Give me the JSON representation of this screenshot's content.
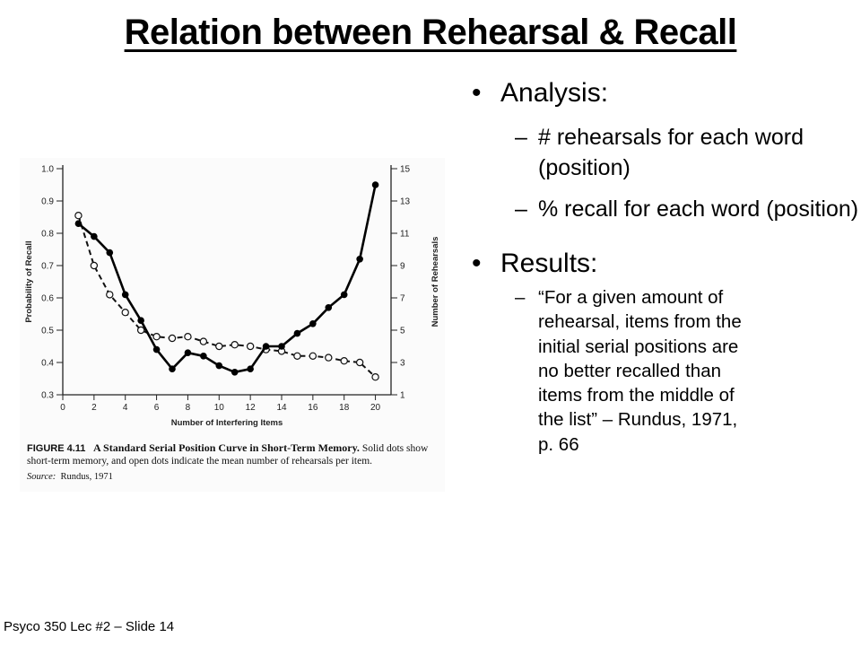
{
  "slide": {
    "title": "Relation between Rehearsal & Recall",
    "footer": "Psyco 350 Lec #2 – Slide 14"
  },
  "bullets": {
    "analysis": {
      "label": "Analysis:",
      "items": [
        "# rehearsals for each word (position)",
        "% recall for each word (position)"
      ]
    },
    "results": {
      "label": "Results:",
      "quote_lines": [
        "“For a given amount of",
        "rehearsal, items from the",
        "initial serial positions are",
        "no better recalled than",
        "items from the middle of",
        "the list” – Rundus, 1971,",
        "p. 66"
      ]
    }
  },
  "figure": {
    "label": "FIGURE 4.11",
    "title": "A Standard Serial Position Curve in Short-Term Memory.",
    "text": " Solid dots show short-term memory, and open dots indicate the mean number of rehearsals per item.",
    "source_label": "Source:",
    "source_text": "Rundus, 1971"
  },
  "chart_data": {
    "type": "line",
    "xlabel": "Number of Interfering Items",
    "ylabel": "Probability of Recall",
    "y2label": "Number of Rehearsals",
    "xlim": [
      0,
      21
    ],
    "ylim": [
      0.3,
      1.0
    ],
    "y2lim": [
      1,
      15
    ],
    "x_ticks": [
      "0",
      "2",
      "4",
      "6",
      "8",
      "10",
      "12",
      "14",
      "16",
      "18",
      "20"
    ],
    "y_ticks": [
      "1.0",
      "0.9",
      "0.8",
      "0.7",
      "0.6",
      "0.5",
      "0.4",
      "0.3"
    ],
    "y2_ticks": [
      "15",
      "13",
      "11",
      "9",
      "7",
      "5",
      "3",
      "1"
    ],
    "grid": false,
    "series": [
      {
        "style": "solid-filled-dots",
        "axis": "left",
        "x": [
          1,
          2,
          3,
          4,
          5,
          6,
          7,
          8,
          9,
          10,
          11,
          12,
          13,
          14,
          15,
          16,
          17,
          18,
          19,
          20
        ],
        "values": [
          0.83,
          0.79,
          0.74,
          0.61,
          0.53,
          0.44,
          0.38,
          0.43,
          0.42,
          0.39,
          0.37,
          0.38,
          0.45,
          0.45,
          0.49,
          0.52,
          0.57,
          0.61,
          0.72,
          0.95
        ]
      },
      {
        "style": "dashed-open-dots",
        "axis": "right",
        "x": [
          1,
          2,
          3,
          4,
          5,
          6,
          7,
          8,
          9,
          10,
          11,
          12,
          13,
          14,
          15,
          16,
          17,
          18,
          19,
          20
        ],
        "values": [
          12.1,
          9.0,
          7.2,
          6.1,
          5.0,
          4.6,
          4.5,
          4.6,
          4.3,
          4.0,
          4.1,
          4.0,
          3.8,
          3.7,
          3.4,
          3.4,
          3.3,
          3.1,
          3.0,
          2.1
        ]
      }
    ]
  }
}
